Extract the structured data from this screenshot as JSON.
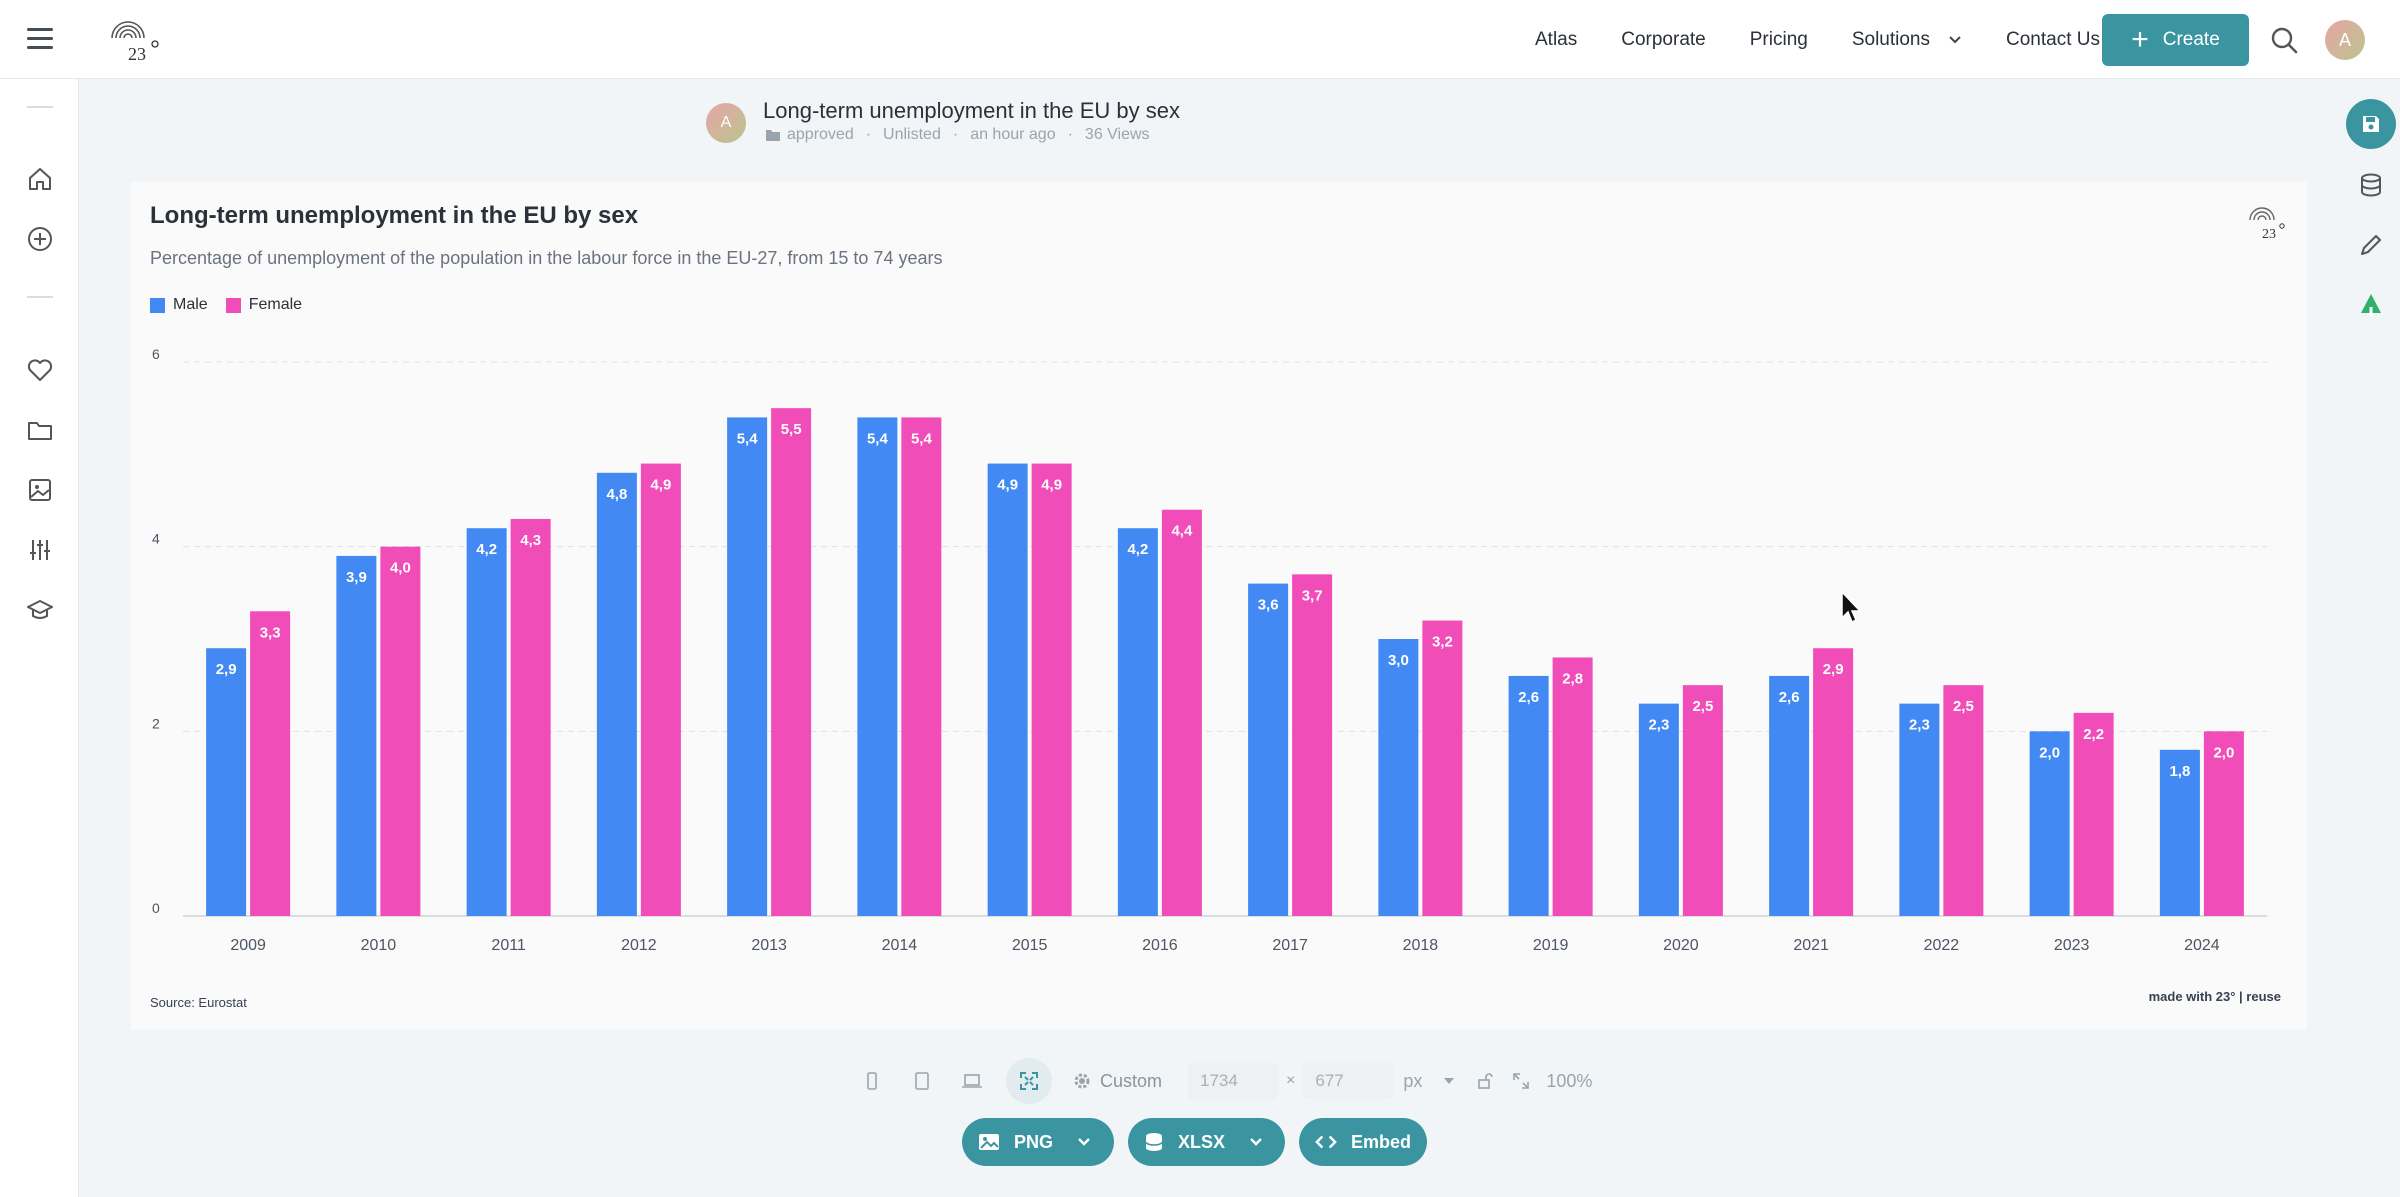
{
  "nav": {
    "items": [
      "Atlas",
      "Corporate",
      "Pricing",
      "Solutions",
      "Contact Us"
    ],
    "create_label": "Create",
    "avatar_initial": "A"
  },
  "header": {
    "avatar_initial": "A",
    "chart_name": "Long-term unemployment in the EU by sex",
    "folder": "approved",
    "visibility": "Unlisted",
    "updated": "an hour ago",
    "views": "36 Views"
  },
  "card": {
    "source": "Source: Eurostat",
    "made_with": "made with 23° | reuse"
  },
  "chart_data": {
    "type": "bar",
    "title": "Long-term unemployment in the EU by sex",
    "subtitle": "Percentage of unemployment of the population in the labour force in the EU-27, from 15 to 74 years",
    "categories": [
      "2009",
      "2010",
      "2011",
      "2012",
      "2013",
      "2014",
      "2015",
      "2016",
      "2017",
      "2018",
      "2019",
      "2020",
      "2021",
      "2022",
      "2023",
      "2024"
    ],
    "series": [
      {
        "name": "Male",
        "color": "#4289f3",
        "values": [
          2.9,
          3.9,
          4.2,
          4.8,
          5.4,
          5.4,
          4.9,
          4.2,
          3.6,
          3.0,
          2.6,
          2.3,
          2.6,
          2.3,
          2.0,
          1.8
        ]
      },
      {
        "name": "Female",
        "color": "#f04db8",
        "values": [
          3.3,
          4.0,
          4.3,
          4.9,
          5.5,
          5.4,
          4.9,
          4.4,
          3.7,
          3.2,
          2.8,
          2.5,
          2.9,
          2.5,
          2.2,
          2.0
        ]
      }
    ],
    "yticks": [
      0,
      2,
      4,
      6
    ],
    "ylim": [
      0,
      6
    ],
    "value_labels": "comma-decimal, one decimal place",
    "grid": "horizontal dashed",
    "legend_position": "top-left"
  },
  "toolbar": {
    "custom_label": "Custom",
    "width": "1734",
    "height": "677",
    "unit": "px",
    "zoom": "100%"
  },
  "export": {
    "png": "PNG",
    "xlsx": "XLSX",
    "embed": "Embed"
  }
}
